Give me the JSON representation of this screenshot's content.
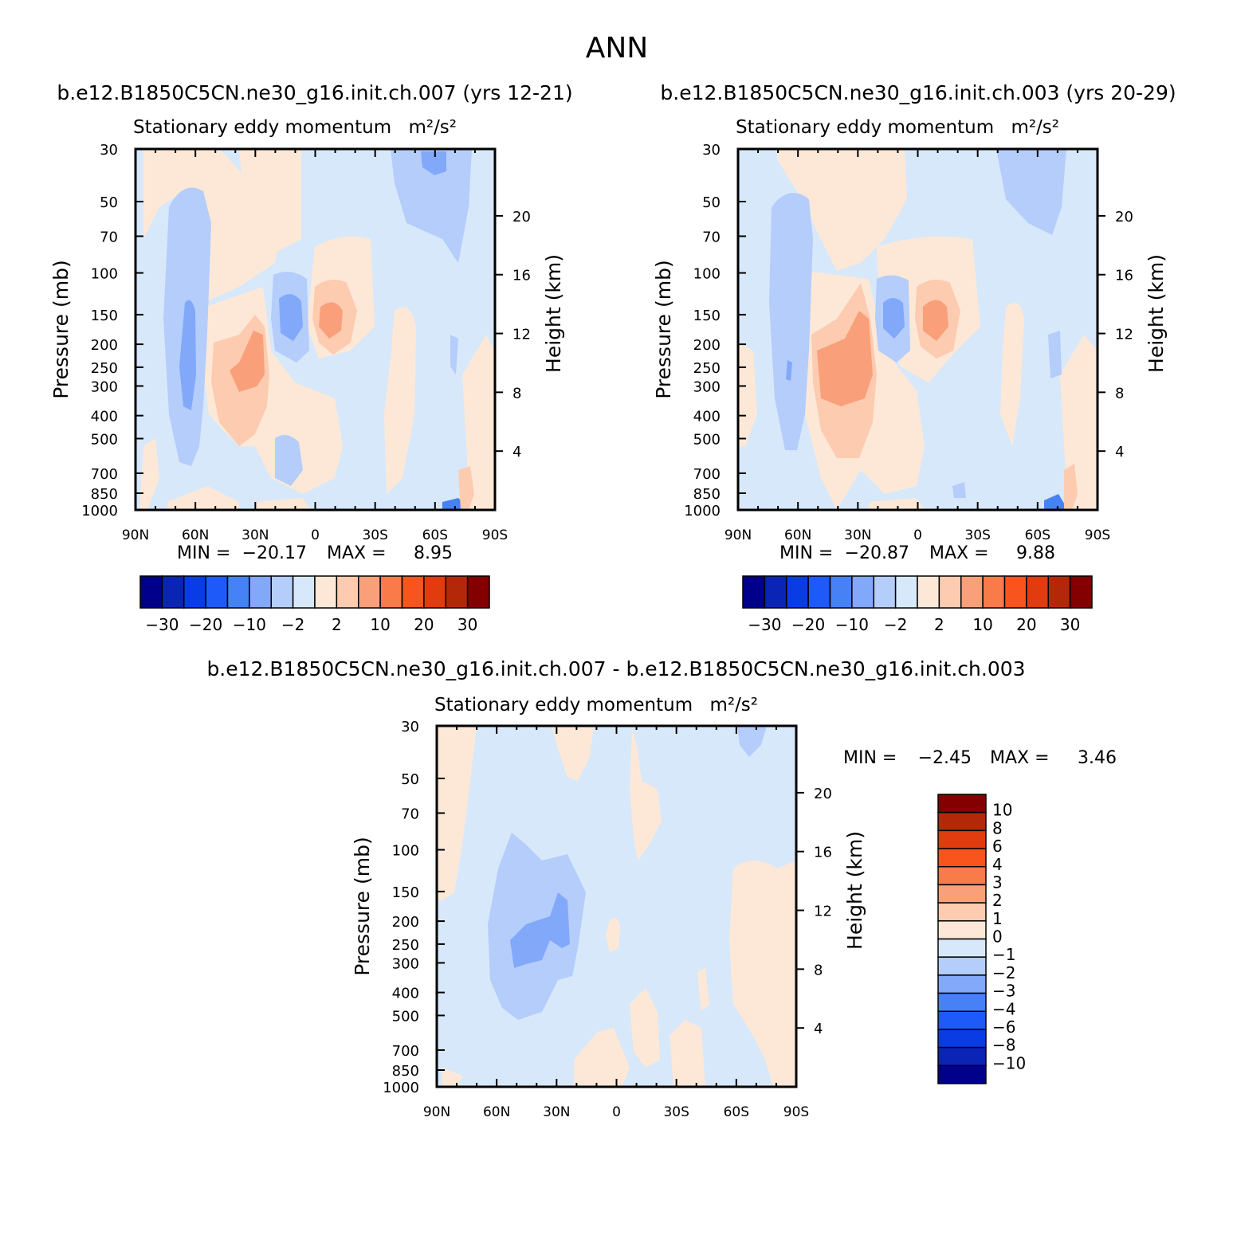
{
  "page_title": "ANN",
  "panels": [
    {
      "case_title": "b.e12.B1850C5CN.ne30_g16.init.ch.007 (yrs 12-21)",
      "var_title": "Stationary eddy momentum",
      "units": "m²/s²",
      "min_label": "MIN =",
      "min_value": "-20.17",
      "max_label": "MAX =",
      "max_value": "8.95"
    },
    {
      "case_title": "b.e12.B1850C5CN.ne30_g16.init.ch.003 (yrs 20-29)",
      "var_title": "Stationary eddy momentum",
      "units": "m²/s²",
      "min_label": "MIN =",
      "min_value": "-20.87",
      "max_label": "MAX =",
      "max_value": "9.88"
    },
    {
      "case_title": "b.e12.B1850C5CN.ne30_g16.init.ch.007 - b.e12.B1850C5CN.ne30_g16.init.ch.003",
      "var_title": "Stationary eddy momentum",
      "units": "m²/s²",
      "min_label": "MIN =",
      "min_value": "-2.45",
      "max_label": "MAX =",
      "max_value": "3.46"
    }
  ],
  "axes": {
    "ylabel": "Pressure (mb)",
    "y2label": "Height (km)",
    "pressure_ticks": [
      "30",
      "50",
      "70",
      "100",
      "150",
      "200",
      "250",
      "300",
      "400",
      "500",
      "700",
      "850",
      "1000"
    ],
    "height_ticks": [
      "20",
      "16",
      "12",
      "8",
      "4"
    ],
    "lat_ticks": [
      "90N",
      "60N",
      "30N",
      "0",
      "30S",
      "60S",
      "90S"
    ]
  },
  "colorbar_main": {
    "colors": [
      "#00008b",
      "#0a24b5",
      "#0a3ce6",
      "#1e5afa",
      "#4682f5",
      "#82a8fa",
      "#b4cdfa",
      "#d7e8fa",
      "#fde8d7",
      "#fccbb0",
      "#f9a07a",
      "#f97b49",
      "#f9541e",
      "#e03c0f",
      "#b4280a",
      "#840000"
    ],
    "labels": [
      "-30",
      "-20",
      "-10",
      "-2",
      "2",
      "10",
      "20",
      "30"
    ]
  },
  "colorbar_diff": {
    "colors": [
      "#840000",
      "#b4280a",
      "#e03c0f",
      "#f9541e",
      "#f97b49",
      "#f9a07a",
      "#fccbb0",
      "#fde8d7",
      "#d7e8fa",
      "#b4cdfa",
      "#82a8fa",
      "#4682f5",
      "#1e5afa",
      "#0a3ce6",
      "#0a24b5",
      "#00008b"
    ],
    "labels": [
      "10",
      "8",
      "6",
      "4",
      "3",
      "2",
      "1",
      "0",
      "-1",
      "-2",
      "-3",
      "-4",
      "-6",
      "-8",
      "-10"
    ]
  },
  "chart_data": [
    {
      "type": "heatmap",
      "title": "Stationary eddy momentum",
      "units": "m²/s²",
      "xlabel": "",
      "ylabel": "Pressure (mb)",
      "y2label": "Height (km)",
      "x_ticks": [
        "90N",
        "60N",
        "30N",
        "0",
        "30S",
        "60S",
        "90S"
      ],
      "y_ticks": [
        30,
        50,
        70,
        100,
        150,
        200,
        250,
        300,
        400,
        500,
        700,
        850,
        1000
      ],
      "y_scale": "log",
      "y_reversed": true,
      "levels": [
        -30,
        -20,
        -10,
        -2,
        2,
        10,
        20,
        30
      ],
      "min": -20.17,
      "max": 8.95,
      "features": [
        {
          "lat": 48,
          "p": 250,
          "value": -18,
          "desc": "negative maximum near 60N-45N"
        },
        {
          "lat": 32,
          "p": 250,
          "value": 7,
          "desc": "positive near 30N"
        },
        {
          "lat": 12,
          "p": 150,
          "value": -10
        },
        {
          "lat": -8,
          "p": 150,
          "value": 8
        }
      ]
    },
    {
      "type": "heatmap",
      "title": "Stationary eddy momentum",
      "units": "m²/s²",
      "xlabel": "",
      "ylabel": "Pressure (mb)",
      "y2label": "Height (km)",
      "x_ticks": [
        "90N",
        "60N",
        "30N",
        "0",
        "30S",
        "60S",
        "90S"
      ],
      "y_ticks": [
        30,
        50,
        70,
        100,
        150,
        200,
        250,
        300,
        400,
        500,
        700,
        850,
        1000
      ],
      "y_scale": "log",
      "y_reversed": true,
      "levels": [
        -30,
        -20,
        -10,
        -2,
        2,
        10,
        20,
        30
      ],
      "min": -20.87,
      "max": 9.88,
      "features": [
        {
          "lat": 60,
          "p": 250,
          "value": -8
        },
        {
          "lat": 32,
          "p": 250,
          "value": 9
        },
        {
          "lat": 12,
          "p": 150,
          "value": -11
        },
        {
          "lat": -8,
          "p": 150,
          "value": 8
        }
      ]
    },
    {
      "type": "heatmap",
      "title": "Stationary eddy momentum",
      "units": "m²/s²",
      "xlabel": "",
      "ylabel": "Pressure (mb)",
      "y2label": "Height (km)",
      "x_ticks": [
        "90N",
        "60N",
        "30N",
        "0",
        "30S",
        "60S",
        "90S"
      ],
      "y_ticks": [
        30,
        50,
        70,
        100,
        150,
        200,
        250,
        300,
        400,
        500,
        700,
        850,
        1000
      ],
      "y_scale": "log",
      "y_reversed": true,
      "levels": [
        -10,
        -8,
        -6,
        -4,
        -3,
        -2,
        -1,
        0,
        1,
        2,
        3,
        4,
        6,
        8,
        10
      ],
      "min": -2.45,
      "max": 3.46,
      "features": [
        {
          "lat": 38,
          "p": 250,
          "value": -2.4
        },
        {
          "lat": 80,
          "p": 120,
          "value": 0.5
        },
        {
          "lat": -70,
          "p": 300,
          "value": 0.5
        }
      ]
    }
  ]
}
